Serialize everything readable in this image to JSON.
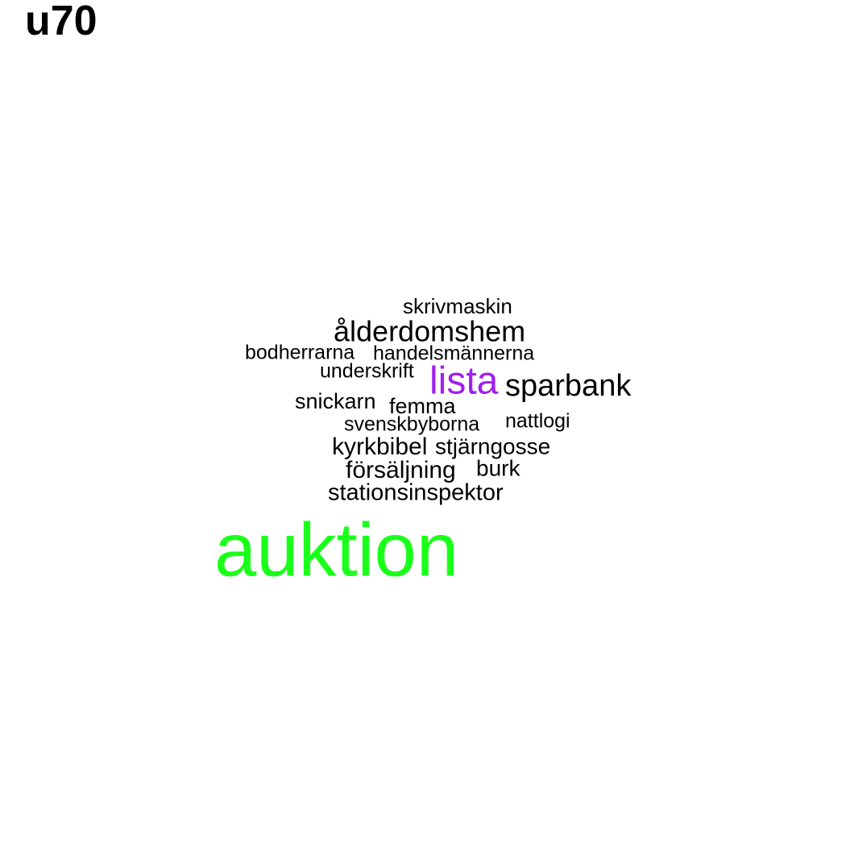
{
  "title": "u70",
  "words": [
    {
      "text": "skrivmaskin",
      "color": "#000000"
    },
    {
      "text": "ålderdomshem",
      "color": "#000000"
    },
    {
      "text": "bodherrarna",
      "color": "#000000"
    },
    {
      "text": "handelsmännerna",
      "color": "#000000"
    },
    {
      "text": "underskrift",
      "color": "#000000"
    },
    {
      "text": "lista",
      "color": "#a020f0"
    },
    {
      "text": "sparbank",
      "color": "#000000"
    },
    {
      "text": "snickarn",
      "color": "#000000"
    },
    {
      "text": "femma",
      "color": "#000000"
    },
    {
      "text": "svenskbyborna",
      "color": "#000000"
    },
    {
      "text": "nattlogi",
      "color": "#000000"
    },
    {
      "text": "kyrkbibel",
      "color": "#000000"
    },
    {
      "text": "stjärngosse",
      "color": "#000000"
    },
    {
      "text": "försäljning",
      "color": "#000000"
    },
    {
      "text": "burk",
      "color": "#000000"
    },
    {
      "text": "stationsinspektor",
      "color": "#000000"
    },
    {
      "text": "auktion",
      "color": "#1aff1a"
    }
  ]
}
